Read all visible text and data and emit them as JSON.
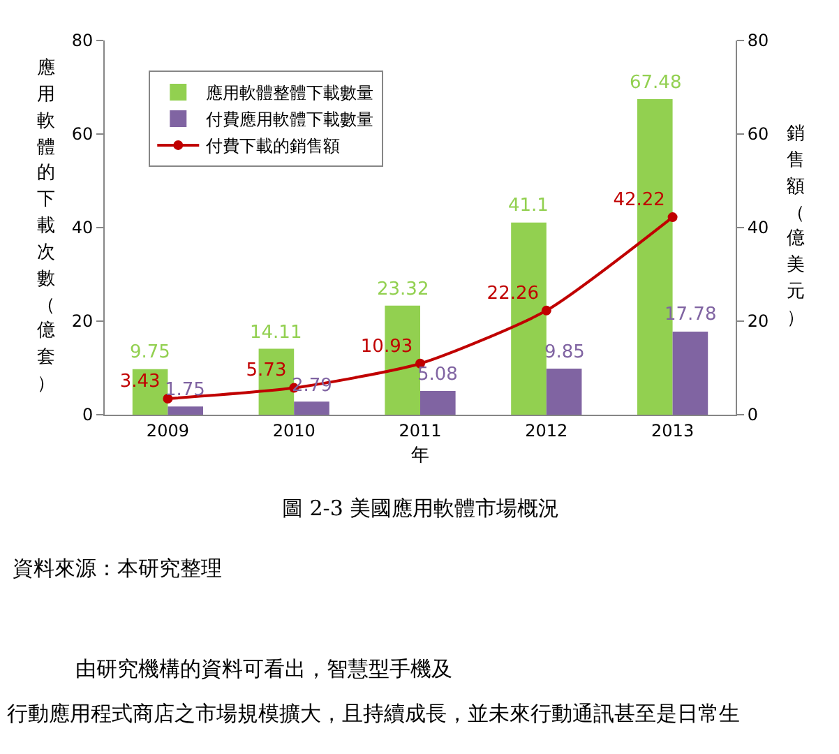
{
  "chart_data": {
    "type": "bar",
    "xlabel": "年",
    "ylabel": "應用軟體的下載次數（億套）",
    "y2label": "銷售額（億美元）",
    "categories": [
      "2009",
      "2010",
      "2011",
      "2012",
      "2013"
    ],
    "series": [
      {
        "name": "應用軟體整體下載數量",
        "color": "#92d050",
        "values": [
          9.75,
          14.11,
          23.32,
          41.1,
          67.48
        ]
      },
      {
        "name": "付費應用軟體下載數量",
        "color": "#8064a2",
        "values": [
          1.75,
          2.79,
          5.08,
          9.85,
          17.78
        ]
      },
      {
        "name": "付費下載的銷售額",
        "type": "line",
        "axis": "y2",
        "color": "#c00000",
        "marker": "circle",
        "values": [
          3.43,
          5.73,
          10.93,
          22.26,
          42.22
        ]
      }
    ],
    "ylim": [
      0,
      80
    ],
    "yticks": [
      0,
      20,
      40,
      60,
      80
    ],
    "y2lim": [
      0,
      80
    ],
    "y2ticks": [
      0,
      20,
      40,
      60,
      80
    ],
    "data_labels": true,
    "grid": false,
    "legend": "top left",
    "annotations": [
      "圖 2-3 美國應用軟體市場概況",
      "資料來源：本研究整理",
      "由研究機構的資料可看出，智慧型手機及",
      "行動應用程式商店之市場規模擴大，且持續成長，並未來行動通訊甚至是日常生"
    ]
  }
}
